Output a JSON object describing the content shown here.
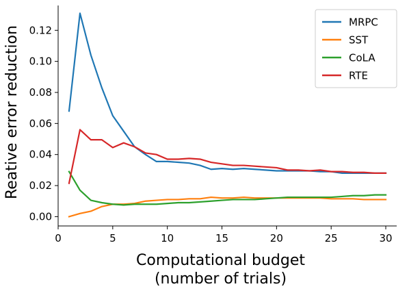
{
  "chart_data": {
    "type": "line",
    "xlabel_lines": [
      "Computational budget",
      "(number of trials)"
    ],
    "ylabel": "Reative error reduction",
    "xlim": [
      0,
      31
    ],
    "ylim": [
      -0.006,
      0.136
    ],
    "xticks": [
      0,
      5,
      10,
      15,
      20,
      25,
      30
    ],
    "yticks": [
      0.0,
      0.02,
      0.04,
      0.06,
      0.08,
      0.1,
      0.12
    ],
    "ytick_labels": [
      "0.00",
      "0.02",
      "0.04",
      "0.06",
      "0.08",
      "0.10",
      "0.12"
    ],
    "legend_position": "top-right",
    "grid": false,
    "x": [
      1,
      2,
      3,
      4,
      5,
      6,
      7,
      8,
      9,
      10,
      11,
      12,
      13,
      14,
      15,
      16,
      17,
      18,
      19,
      20,
      21,
      22,
      23,
      24,
      25,
      26,
      27,
      28,
      29,
      30
    ],
    "series": [
      {
        "name": "MRPC",
        "color": "#1f77b4",
        "values": [
          0.068,
          0.131,
          0.104,
          0.083,
          0.065,
          0.055,
          0.045,
          0.04,
          0.0355,
          0.0355,
          0.035,
          0.0345,
          0.033,
          0.0305,
          0.031,
          0.0305,
          0.031,
          0.0305,
          0.03,
          0.0295,
          0.0295,
          0.0295,
          0.0295,
          0.029,
          0.029,
          0.028,
          0.028,
          0.028,
          0.028,
          0.028
        ]
      },
      {
        "name": "SST",
        "color": "#ff7f0e",
        "values": [
          0.0,
          0.002,
          0.0035,
          0.0065,
          0.008,
          0.008,
          0.0085,
          0.01,
          0.0105,
          0.011,
          0.011,
          0.0115,
          0.0115,
          0.0125,
          0.012,
          0.012,
          0.0125,
          0.012,
          0.012,
          0.012,
          0.012,
          0.012,
          0.012,
          0.012,
          0.0115,
          0.0115,
          0.0115,
          0.011,
          0.011,
          0.011
        ]
      },
      {
        "name": "CoLA",
        "color": "#2ca02c",
        "values": [
          0.029,
          0.017,
          0.0105,
          0.009,
          0.008,
          0.0075,
          0.008,
          0.008,
          0.008,
          0.0085,
          0.009,
          0.009,
          0.0095,
          0.01,
          0.0105,
          0.011,
          0.011,
          0.011,
          0.0115,
          0.012,
          0.0125,
          0.0125,
          0.0125,
          0.0125,
          0.0125,
          0.013,
          0.0135,
          0.0135,
          0.014,
          0.014
        ]
      },
      {
        "name": "RTE",
        "color": "#d62728",
        "values": [
          0.0215,
          0.056,
          0.0495,
          0.0495,
          0.0445,
          0.0475,
          0.045,
          0.041,
          0.04,
          0.037,
          0.037,
          0.0375,
          0.037,
          0.035,
          0.034,
          0.033,
          0.033,
          0.0325,
          0.032,
          0.0315,
          0.03,
          0.03,
          0.0295,
          0.03,
          0.029,
          0.029,
          0.0285,
          0.0285,
          0.028,
          0.028
        ]
      }
    ]
  }
}
